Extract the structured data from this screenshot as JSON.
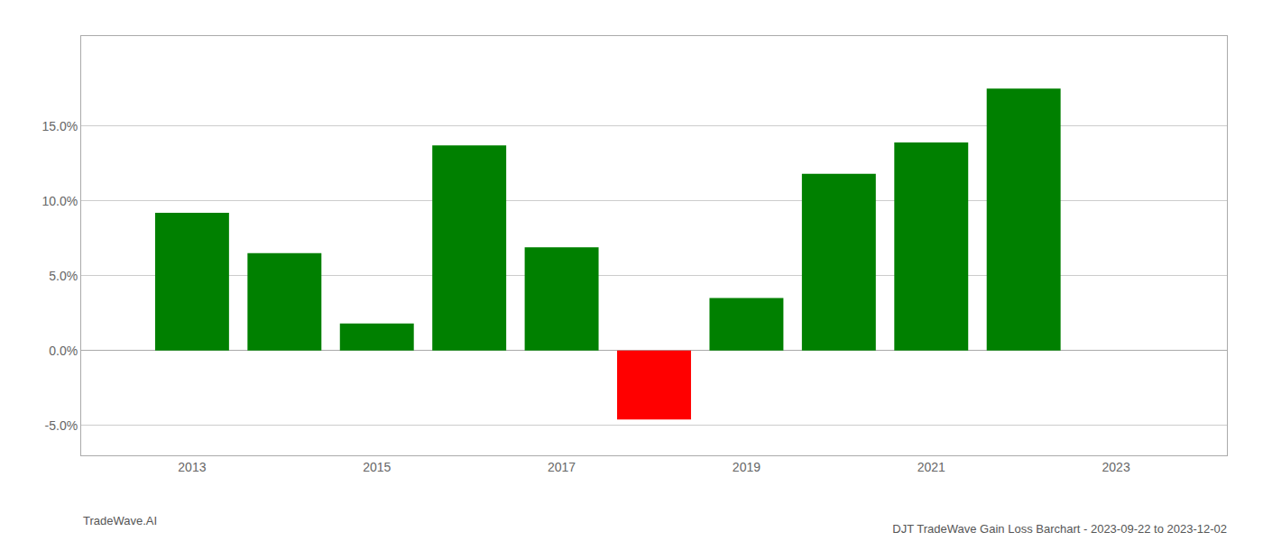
{
  "chart_data": {
    "type": "bar",
    "title": "DJT TradeWave Gain Loss Barchart - 2023-09-22 to 2023-12-02",
    "annotations": [
      "TradeWave.AI"
    ],
    "x": [
      2013,
      2014,
      2015,
      2016,
      2017,
      2018,
      2019,
      2020,
      2021,
      2022
    ],
    "values": [
      0.092,
      0.065,
      0.018,
      0.137,
      0.069,
      -0.046,
      0.035,
      0.118,
      0.139,
      0.175
    ],
    "colors": [
      "#008000",
      "#008000",
      "#008000",
      "#008000",
      "#008000",
      "#ff0000",
      "#008000",
      "#008000",
      "#008000",
      "#008000"
    ],
    "xlim": [
      2011.8,
      2024.2
    ],
    "xticks": [
      2013,
      2015,
      2017,
      2019,
      2021,
      2023
    ],
    "ylim": [
      -0.07,
      0.21
    ],
    "yticks": [
      {
        "value": -0.05,
        "label": "-5.0%"
      },
      {
        "value": 0.0,
        "label": "0.0%"
      },
      {
        "value": 0.05,
        "label": "5.0%"
      },
      {
        "value": 0.1,
        "label": "10.0%"
      },
      {
        "value": 0.15,
        "label": "15.0%"
      }
    ],
    "grid": true
  }
}
